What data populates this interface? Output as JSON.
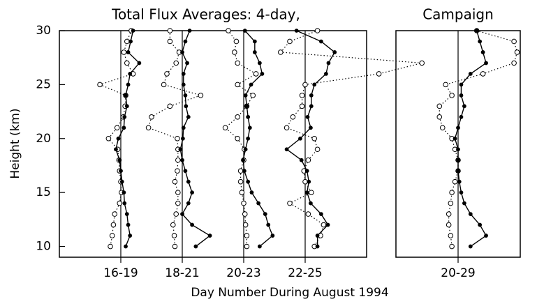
{
  "chart_data": [
    {
      "type": "profile",
      "title": "Total Flux Averages: 4-day,",
      "ylabel": "Height (km)",
      "xlabel": "Day Number During August 1994",
      "xlim": [
        0,
        5
      ],
      "ylim": [
        9,
        30
      ],
      "yticks": [
        10,
        15,
        20,
        25,
        30
      ],
      "color": "#000000",
      "heights": [
        10,
        11,
        12,
        13,
        14,
        15,
        16,
        17,
        18,
        19,
        20,
        21,
        22,
        23,
        24,
        25,
        26,
        27,
        28,
        29,
        30
      ],
      "groups": [
        {
          "label": "16-19",
          "center": 1,
          "solid": [
            1.08,
            1.15,
            1.12,
            1.1,
            1.06,
            1.05,
            1.02,
            1,
            0.98,
            0.92,
            0.96,
            1.05,
            1.06,
            1.1,
            1.08,
            1.12,
            1.15,
            1.3,
            1.12,
            1.16,
            1.2
          ],
          "open": [
            0.83,
            0.86,
            0.88,
            0.9,
            0.98,
            1.01,
            1,
            0.98,
            0.97,
            0.95,
            0.8,
            0.94,
            1.04,
            1.07,
            1.08,
            0.66,
            1.2,
            1.1,
            1.05,
            1.1,
            1.17
          ]
        },
        {
          "label": "18-21",
          "center": 2,
          "solid": [
            2.22,
            2.45,
            2.16,
            2,
            2.1,
            2.16,
            2.1,
            2.05,
            2,
            1.97,
            2.01,
            2.02,
            2.1,
            2.06,
            2.05,
            2.02,
            2.02,
            2.08,
            2,
            2.05,
            2.12
          ],
          "open": [
            1.88,
            1.87,
            1.85,
            1.9,
            1.93,
            1.93,
            1.88,
            1.92,
            1.93,
            1.93,
            1.92,
            1.45,
            1.5,
            1.8,
            2.3,
            1.7,
            1.75,
            1.9,
            1.95,
            1.8,
            1.8
          ]
        },
        {
          "label": "20-23",
          "center": 3,
          "solid": [
            3.26,
            3.47,
            3.4,
            3.35,
            3.24,
            3.13,
            3.07,
            3.01,
            2.99,
            3.03,
            3.07,
            3.1,
            3.07,
            3.05,
            3.03,
            3.12,
            3.3,
            3.26,
            3.18,
            3.18,
            3.02
          ],
          "open": [
            3.05,
            3.05,
            3.03,
            3.02,
            3,
            2.97,
            2.95,
            2.95,
            3,
            3.01,
            2.9,
            2.7,
            2.9,
            3.05,
            3.15,
            2.9,
            3.2,
            2.9,
            2.85,
            2.88,
            2.75
          ]
        },
        {
          "label": "22-25",
          "center": 4,
          "solid": [
            4.2,
            4.2,
            4.37,
            4.26,
            4.09,
            4.03,
            4.06,
            4.03,
            3.94,
            3.7,
            3.92,
            4.09,
            4.04,
            4.1,
            4.1,
            4.15,
            4.34,
            4.38,
            4.48,
            4.26,
            3.86
          ],
          "open": [
            4.15,
            4.25,
            4.3,
            4.05,
            3.75,
            4.1,
            4,
            3.98,
            4.05,
            4.2,
            4.15,
            3.7,
            3.8,
            3.95,
            3.95,
            4,
            5.2,
            5.9,
            3.6,
            3.75,
            4.2
          ]
        }
      ]
    },
    {
      "type": "profile",
      "title": "Campaign",
      "xlim": [
        -1,
        1
      ],
      "ylim": [
        9,
        30
      ],
      "color": "#000000",
      "heights": [
        10,
        11,
        12,
        13,
        14,
        15,
        16,
        17,
        18,
        19,
        20,
        21,
        22,
        23,
        24,
        25,
        26,
        27,
        28,
        29,
        30
      ],
      "groups": [
        {
          "label": "20-29",
          "center": 0,
          "solid": [
            0.2,
            0.45,
            0.35,
            0.2,
            0.1,
            0.05,
            0.02,
            0,
            0,
            0,
            -0.05,
            0,
            0.05,
            0.1,
            0.05,
            0.05,
            0.2,
            0.45,
            0.4,
            0.35,
            0.3
          ],
          "open": [
            -0.1,
            -0.12,
            -0.15,
            -0.15,
            -0.12,
            -0.1,
            -0.05,
            0,
            0,
            -0.05,
            -0.1,
            -0.25,
            -0.3,
            -0.3,
            -0.1,
            -0.2,
            0.4,
            0.9,
            0.95,
            0.9,
            0.3
          ]
        }
      ]
    }
  ]
}
